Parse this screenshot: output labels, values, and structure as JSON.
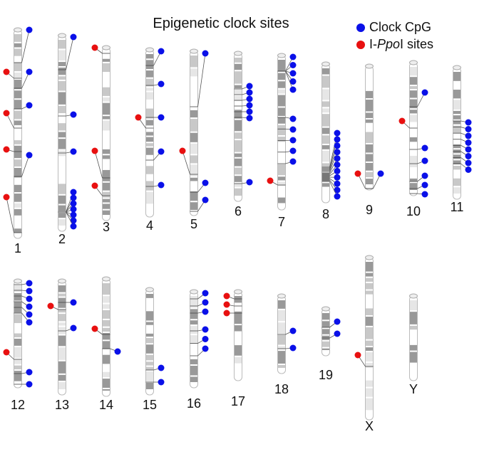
{
  "title": "Epigenetic clock sites",
  "legend": {
    "clock": {
      "label": "Clock CpG",
      "color": "#0a10e8"
    },
    "ppoi": {
      "label_prefix": "I-",
      "label_italic": "Ppo",
      "label_suffix": "I sites",
      "color": "#e81010"
    }
  },
  "chromosomes": [
    {
      "label": "1",
      "clock_sites": 4,
      "ppoi_sites": 4
    },
    {
      "label": "2",
      "clock_sites": 10,
      "ppoi_sites": 0
    },
    {
      "label": "3",
      "clock_sites": 0,
      "ppoi_sites": 3
    },
    {
      "label": "4",
      "clock_sites": 5,
      "ppoi_sites": 1
    },
    {
      "label": "5",
      "clock_sites": 3,
      "ppoi_sites": 1
    },
    {
      "label": "6",
      "clock_sites": 7,
      "ppoi_sites": 0
    },
    {
      "label": "7",
      "clock_sites": 10,
      "ppoi_sites": 1
    },
    {
      "label": "8",
      "clock_sites": 11,
      "ppoi_sites": 0
    },
    {
      "label": "9",
      "clock_sites": 1,
      "ppoi_sites": 1
    },
    {
      "label": "10",
      "clock_sites": 6,
      "ppoi_sites": 1
    },
    {
      "label": "11",
      "clock_sites": 8,
      "ppoi_sites": 0
    },
    {
      "label": "12",
      "clock_sites": 8,
      "ppoi_sites": 1
    },
    {
      "label": "13",
      "clock_sites": 2,
      "ppoi_sites": 1
    },
    {
      "label": "14",
      "clock_sites": 1,
      "ppoi_sites": 1
    },
    {
      "label": "15",
      "clock_sites": 2,
      "ppoi_sites": 0
    },
    {
      "label": "16",
      "clock_sites": 6,
      "ppoi_sites": 0
    },
    {
      "label": "17",
      "clock_sites": 0,
      "ppoi_sites": 3
    },
    {
      "label": "18",
      "clock_sites": 2,
      "ppoi_sites": 0
    },
    {
      "label": "19",
      "clock_sites": 2,
      "ppoi_sites": 0
    },
    {
      "label": "X",
      "clock_sites": 0,
      "ppoi_sites": 1
    },
    {
      "label": "Y",
      "clock_sites": 0,
      "ppoi_sites": 0
    }
  ]
}
